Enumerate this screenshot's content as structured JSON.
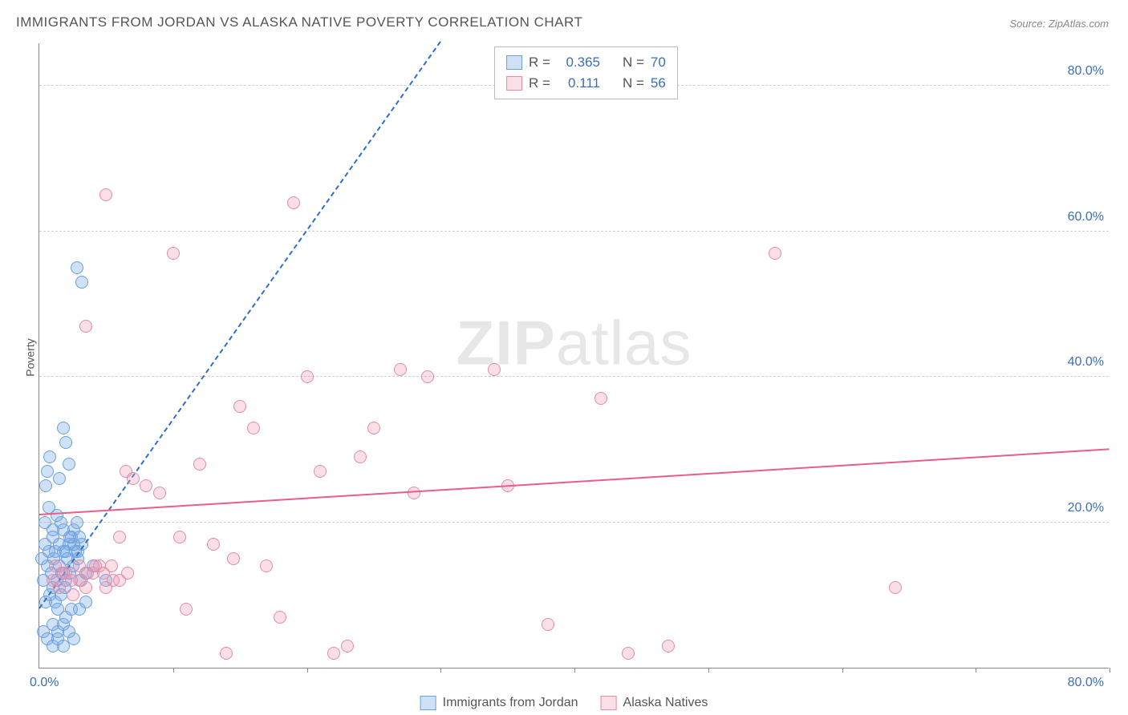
{
  "title": "IMMIGRANTS FROM JORDAN VS ALASKA NATIVE POVERTY CORRELATION CHART",
  "source": "Source: ZipAtlas.com",
  "ylabel": "Poverty",
  "watermark_bold": "ZIP",
  "watermark_rest": "atlas",
  "chart": {
    "type": "scatter",
    "xlim": [
      0,
      80
    ],
    "ylim": [
      0,
      86
    ],
    "x_zero_label": "0.0%",
    "x_max_label": "80.0%",
    "ytick_labels": [
      "20.0%",
      "40.0%",
      "60.0%",
      "80.0%"
    ],
    "ytick_values": [
      20,
      40,
      60,
      80
    ],
    "xtick_values": [
      10,
      20,
      30,
      40,
      50,
      60,
      70,
      80
    ],
    "grid_color": "#d0d0d0",
    "background_color": "#ffffff",
    "point_radius": 8,
    "point_stroke_width": 1.5,
    "series": [
      {
        "key": "jordan",
        "label": "Immigrants from Jordan",
        "fill": "rgba(120,170,230,0.35)",
        "stroke": "#6aa0dd",
        "trend_color": "#2e6fc9",
        "trend_dashed": true,
        "trend": {
          "x1": 0,
          "y1": 8,
          "x2": 30,
          "y2": 86
        },
        "R": "0.365",
        "N": "70",
        "points": [
          [
            0.3,
            12
          ],
          [
            0.5,
            9
          ],
          [
            0.6,
            14
          ],
          [
            0.8,
            10
          ],
          [
            0.9,
            13
          ],
          [
            1.0,
            11
          ],
          [
            1.1,
            15
          ],
          [
            1.2,
            9
          ],
          [
            1.3,
            12
          ],
          [
            1.4,
            8
          ],
          [
            1.5,
            14
          ],
          [
            1.6,
            10
          ],
          [
            1.7,
            13
          ],
          [
            1.8,
            16
          ],
          [
            1.9,
            11
          ],
          [
            2.0,
            12
          ],
          [
            2.1,
            15
          ],
          [
            2.2,
            17
          ],
          [
            2.3,
            13
          ],
          [
            2.4,
            18
          ],
          [
            2.5,
            14
          ],
          [
            2.6,
            19
          ],
          [
            2.7,
            16
          ],
          [
            2.8,
            20
          ],
          [
            2.9,
            15
          ],
          [
            3.0,
            18
          ],
          [
            3.1,
            12
          ],
          [
            3.2,
            17
          ],
          [
            1.0,
            6
          ],
          [
            1.4,
            5
          ],
          [
            1.8,
            6
          ],
          [
            2.0,
            7
          ],
          [
            2.4,
            8
          ],
          [
            0.5,
            25
          ],
          [
            0.6,
            27
          ],
          [
            0.8,
            29
          ],
          [
            1.5,
            26
          ],
          [
            1.8,
            33
          ],
          [
            2.0,
            31
          ],
          [
            2.2,
            28
          ],
          [
            0.4,
            20
          ],
          [
            0.7,
            22
          ],
          [
            1.0,
            19
          ],
          [
            1.3,
            21
          ],
          [
            1.6,
            20
          ],
          [
            5.0,
            12
          ],
          [
            3.5,
            13
          ],
          [
            4.0,
            14
          ],
          [
            3.0,
            8
          ],
          [
            3.5,
            9
          ],
          [
            2.8,
            55
          ],
          [
            3.2,
            53
          ],
          [
            0.3,
            5
          ],
          [
            0.6,
            4
          ],
          [
            1.0,
            3
          ],
          [
            1.4,
            4
          ],
          [
            1.8,
            3
          ],
          [
            2.2,
            5
          ],
          [
            2.6,
            4
          ],
          [
            0.2,
            15
          ],
          [
            0.4,
            17
          ],
          [
            0.7,
            16
          ],
          [
            1.0,
            18
          ],
          [
            1.2,
            16
          ],
          [
            1.5,
            17
          ],
          [
            1.8,
            19
          ],
          [
            2.0,
            16
          ],
          [
            2.3,
            18
          ],
          [
            2.6,
            17
          ],
          [
            2.9,
            16
          ]
        ]
      },
      {
        "key": "alaska",
        "label": "Alaska Natives",
        "fill": "rgba(240,150,175,0.30)",
        "stroke": "#e38ba6",
        "trend_color": "#e85d8a",
        "trend_dashed": false,
        "trend": {
          "x1": 0,
          "y1": 21,
          "x2": 80,
          "y2": 30
        },
        "R": "0.111",
        "N": "56",
        "points": [
          [
            1.0,
            12
          ],
          [
            1.5,
            11
          ],
          [
            2.0,
            13
          ],
          [
            2.5,
            10
          ],
          [
            3.0,
            12
          ],
          [
            3.5,
            11
          ],
          [
            4.0,
            13
          ],
          [
            4.5,
            14
          ],
          [
            5.0,
            11
          ],
          [
            5.5,
            12
          ],
          [
            6.0,
            18
          ],
          [
            6.5,
            27
          ],
          [
            7.0,
            26
          ],
          [
            8.0,
            25
          ],
          [
            9.0,
            24
          ],
          [
            10.0,
            57
          ],
          [
            10.5,
            18
          ],
          [
            11.0,
            8
          ],
          [
            12.0,
            28
          ],
          [
            13.0,
            17
          ],
          [
            14.0,
            2
          ],
          [
            14.5,
            15
          ],
          [
            15.0,
            36
          ],
          [
            16.0,
            33
          ],
          [
            17.0,
            14
          ],
          [
            18.0,
            7
          ],
          [
            19.0,
            64
          ],
          [
            20.0,
            40
          ],
          [
            21.0,
            27
          ],
          [
            22.0,
            2
          ],
          [
            23.0,
            3
          ],
          [
            24.0,
            29
          ],
          [
            25.0,
            33
          ],
          [
            27.0,
            41
          ],
          [
            28.0,
            24
          ],
          [
            29.0,
            40
          ],
          [
            3.5,
            47
          ],
          [
            5.0,
            65
          ],
          [
            34.0,
            41
          ],
          [
            35.0,
            25
          ],
          [
            38.0,
            6
          ],
          [
            42.0,
            37
          ],
          [
            44.0,
            2
          ],
          [
            47.0,
            3
          ],
          [
            55.0,
            57
          ],
          [
            64.0,
            11
          ],
          [
            1.2,
            14
          ],
          [
            1.8,
            13
          ],
          [
            2.4,
            12
          ],
          [
            3.0,
            14
          ],
          [
            3.6,
            13
          ],
          [
            4.2,
            14
          ],
          [
            4.8,
            13
          ],
          [
            5.4,
            14
          ],
          [
            6.0,
            12
          ],
          [
            6.6,
            13
          ]
        ]
      }
    ]
  },
  "legend_top": {
    "r_label": "R =",
    "n_label": "N ="
  }
}
